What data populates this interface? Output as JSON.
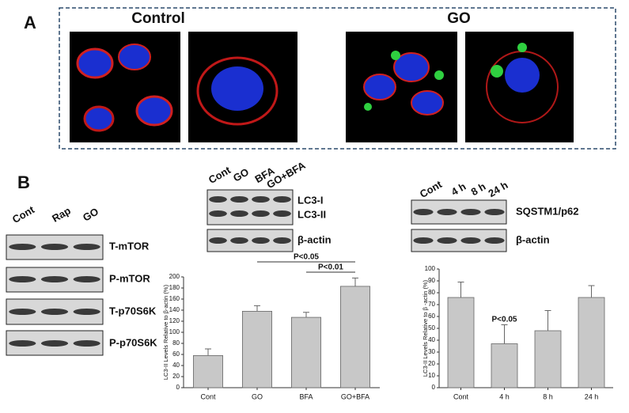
{
  "panel_a": {
    "label": "A",
    "groups": [
      "Control",
      "GO"
    ]
  },
  "panel_b": {
    "label": "B",
    "blots": [
      {
        "lanes": [
          "Cont",
          "Rap",
          "GO"
        ],
        "rows": [
          "T-mTOR",
          "P-mTOR",
          "T-p70S6K",
          "P-p70S6K"
        ]
      },
      {
        "lanes": [
          "Cont",
          "GO",
          "BFA",
          "GO+BFA"
        ],
        "rows": [
          "LC3-I",
          "LC3-II",
          "β-actin"
        ]
      },
      {
        "lanes": [
          "Cont",
          "4 h",
          "8 h",
          "24 h"
        ],
        "rows": [
          "SQSTM1/p62",
          "β-actin"
        ]
      }
    ]
  },
  "chart_data": [
    {
      "type": "bar",
      "y_label": "LC3-II Levels Relative to β-actin (%)",
      "categories": [
        "Cont",
        "GO",
        "BFA",
        "GO+BFA"
      ],
      "values": [
        58,
        138,
        127,
        183
      ],
      "errors": [
        12,
        10,
        9,
        15
      ],
      "color": "#c8c8c8",
      "ylim": [
        0,
        200
      ],
      "yticks": [
        0,
        20,
        40,
        60,
        80,
        100,
        120,
        140,
        160,
        180,
        200
      ],
      "annotations": [
        "P<0.05",
        "P<0.01"
      ]
    },
    {
      "type": "bar",
      "y_label": "LC3-II Levels Relative to β -actin (%)",
      "categories": [
        "Cont",
        "4 h",
        "8 h",
        "24 h"
      ],
      "values": [
        76,
        37,
        48,
        76
      ],
      "errors": [
        13,
        16,
        17,
        10
      ],
      "color": "#c8c8c8",
      "ylim": [
        0,
        100
      ],
      "yticks": [
        0,
        10,
        20,
        30,
        40,
        50,
        60,
        70,
        80,
        90,
        100
      ],
      "annotations": [
        "P<0.05"
      ]
    }
  ]
}
